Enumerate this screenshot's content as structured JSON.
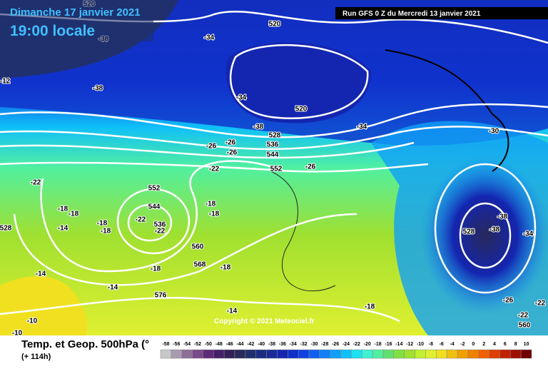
{
  "header": {
    "date": "Dimanche 17 janvier 2021",
    "time": "19:00 locale",
    "run": "Run GFS 0 Z du Mercredi 13 janvier 2021"
  },
  "footer": {
    "copyright": "Copyright © 2021 Meteociel.fr"
  },
  "legend": {
    "title": "Temp. et Geop. 500hPa (°",
    "lead": "(+ 114h)",
    "scale_labels": [
      "-58",
      "-56",
      "-54",
      "-52",
      "-50",
      "-48",
      "-46",
      "-44",
      "-42",
      "-40",
      "-38",
      "-36",
      "-34",
      "-32",
      "-30",
      "-28",
      "-26",
      "-24",
      "-22",
      "-20",
      "-18",
      "-16",
      "-14",
      "-12",
      "-10",
      "-8",
      "-6",
      "-4",
      "-2",
      "0",
      "2",
      "4",
      "6",
      "8",
      "10"
    ],
    "colors": [
      "#c8c8c8",
      "#a89ab0",
      "#8c7098",
      "#7a4a8a",
      "#5e2a7a",
      "#46206a",
      "#33205a",
      "#28285a",
      "#20306e",
      "#1c2c80",
      "#1a2a98",
      "#1426b0",
      "#1030c8",
      "#1040e0",
      "#1060f0",
      "#1080f8",
      "#10a0f8",
      "#10c0f8",
      "#20e0f0",
      "#40f0d0",
      "#50f0a0",
      "#60e070",
      "#80e040",
      "#a0e030",
      "#c0f030",
      "#e0f030",
      "#f0e020",
      "#f0c010",
      "#f0a000",
      "#f08000",
      "#f06000",
      "#e04000",
      "#c02000",
      "#a01000",
      "#700000"
    ]
  },
  "map": {
    "labels": [
      "520",
      "-38",
      "-34",
      "520",
      "-38",
      "-34",
      "520",
      "-38",
      "528",
      "-34",
      "-30",
      "-26",
      "-26",
      "536",
      "-26",
      "544",
      "-22",
      "552",
      "-26",
      "-22",
      "552",
      "-18",
      "-18",
      "544",
      "-18",
      "-18",
      "-22",
      "536",
      "-22",
      "-18",
      "-18",
      "-14",
      "560",
      "568",
      "-18",
      "-18",
      "-14",
      "-14",
      "576",
      "-14",
      "-18",
      "-38",
      "-38",
      "528",
      "-34",
      "-26",
      "-22",
      "-22",
      "560",
      "-10",
      "-10",
      "-12",
      "528"
    ]
  }
}
